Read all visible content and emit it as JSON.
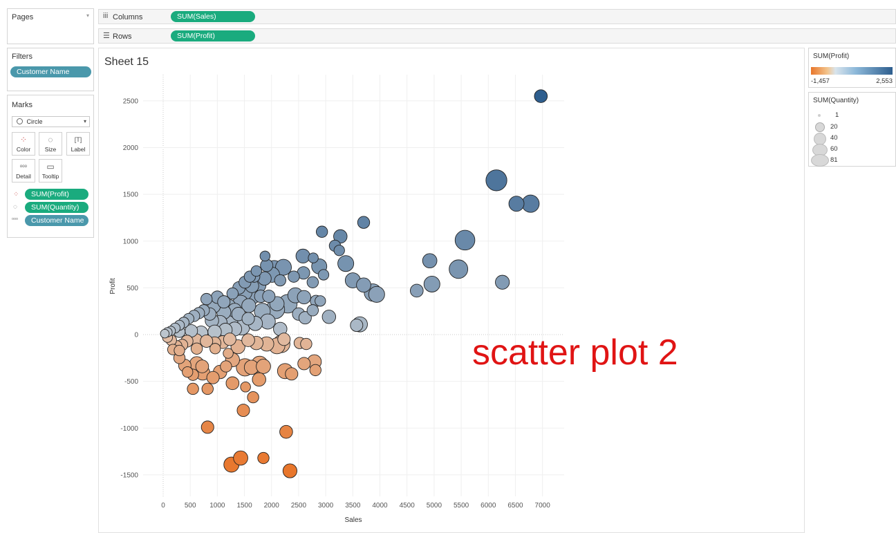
{
  "pages": {
    "title": "Pages"
  },
  "shelves": {
    "columns_label": "Columns",
    "columns_pill": "SUM(Sales)",
    "rows_label": "Rows",
    "rows_pill": "SUM(Profit)"
  },
  "filters": {
    "title": "Filters",
    "pill": "Customer Name"
  },
  "marks": {
    "title": "Marks",
    "type": "Circle",
    "buttons": {
      "color": "Color",
      "size": "Size",
      "label": "Label",
      "detail": "Detail",
      "tooltip": "Tooltip"
    },
    "fields": [
      "SUM(Profit)",
      "SUM(Quantity)",
      "Customer Name"
    ]
  },
  "sheet": {
    "title": "Sheet 15"
  },
  "annotation": "scatter plot 2",
  "legend_color": {
    "title": "SUM(Profit)",
    "min_label": "-1,457",
    "max_label": "2,553",
    "neg_color": "#e8762b",
    "pos_color": "#2e5e8e"
  },
  "legend_size": {
    "title": "SUM(Quantity)",
    "items": [
      "1",
      "20",
      "40",
      "60",
      "81"
    ]
  },
  "chart_data": {
    "type": "scatter",
    "xlabel": "Sales",
    "ylabel": "Profit",
    "xlim": [
      -370,
      7400
    ],
    "ylim": [
      -1730,
      2780
    ],
    "xticks": [
      "0",
      "500",
      "1000",
      "1500",
      "2000",
      "2500",
      "3000",
      "3500",
      "4000",
      "4500",
      "5000",
      "5500",
      "6000",
      "6500",
      "7000"
    ],
    "yticks": [
      "-1500",
      "-1000",
      "-500",
      "0",
      "500",
      "1000",
      "1500",
      "2000",
      "2500"
    ],
    "xtick_values": [
      0,
      500,
      1000,
      1500,
      2000,
      2500,
      3000,
      3500,
      4000,
      4500,
      5000,
      5500,
      6000,
      6500,
      7000
    ],
    "ytick_values": [
      -1500,
      -1000,
      -500,
      0,
      500,
      1000,
      1500,
      2000,
      2500
    ],
    "color_field": "SUM(Profit)",
    "size_field": "SUM(Quantity)",
    "points": [
      {
        "x": 6970,
        "y": 2550,
        "q": 22
      },
      {
        "x": 6150,
        "y": 1650,
        "q": 81
      },
      {
        "x": 6520,
        "y": 1400,
        "q": 35
      },
      {
        "x": 6780,
        "y": 1400,
        "q": 50
      },
      {
        "x": 5570,
        "y": 1010,
        "q": 70
      },
      {
        "x": 6260,
        "y": 560,
        "q": 28
      },
      {
        "x": 5450,
        "y": 700,
        "q": 60
      },
      {
        "x": 4920,
        "y": 790,
        "q": 30
      },
      {
        "x": 4960,
        "y": 540,
        "q": 40
      },
      {
        "x": 4680,
        "y": 470,
        "q": 22
      },
      {
        "x": 3870,
        "y": 450,
        "q": 50
      },
      {
        "x": 3940,
        "y": 430,
        "q": 40
      },
      {
        "x": 3700,
        "y": 530,
        "q": 30
      },
      {
        "x": 3500,
        "y": 580,
        "q": 35
      },
      {
        "x": 3370,
        "y": 760,
        "q": 40
      },
      {
        "x": 3270,
        "y": 1050,
        "q": 25
      },
      {
        "x": 3700,
        "y": 1200,
        "q": 18
      },
      {
        "x": 2930,
        "y": 1100,
        "q": 15
      },
      {
        "x": 3170,
        "y": 950,
        "q": 15
      },
      {
        "x": 3250,
        "y": 900,
        "q": 12
      },
      {
        "x": 2880,
        "y": 730,
        "q": 35
      },
      {
        "x": 2960,
        "y": 640,
        "q": 12
      },
      {
        "x": 2580,
        "y": 840,
        "q": 28
      },
      {
        "x": 2770,
        "y": 820,
        "q": 10
      },
      {
        "x": 2410,
        "y": 620,
        "q": 15
      },
      {
        "x": 2590,
        "y": 660,
        "q": 20
      },
      {
        "x": 2760,
        "y": 560,
        "q": 15
      },
      {
        "x": 3060,
        "y": 190,
        "q": 25
      },
      {
        "x": 3630,
        "y": 110,
        "q": 35
      },
      {
        "x": 3570,
        "y": 100,
        "q": 20
      },
      {
        "x": 2440,
        "y": 420,
        "q": 35
      },
      {
        "x": 2600,
        "y": 400,
        "q": 25
      },
      {
        "x": 2820,
        "y": 360,
        "q": 15
      },
      {
        "x": 2300,
        "y": 330,
        "q": 60
      },
      {
        "x": 2070,
        "y": 270,
        "q": 60
      },
      {
        "x": 2500,
        "y": 220,
        "q": 20
      },
      {
        "x": 2620,
        "y": 180,
        "q": 20
      },
      {
        "x": 2760,
        "y": 260,
        "q": 15
      },
      {
        "x": 2900,
        "y": 360,
        "q": 12
      },
      {
        "x": 1910,
        "y": 740,
        "q": 20
      },
      {
        "x": 2050,
        "y": 700,
        "q": 50
      },
      {
        "x": 2220,
        "y": 720,
        "q": 40
      },
      {
        "x": 1870,
        "y": 600,
        "q": 25
      },
      {
        "x": 1680,
        "y": 620,
        "q": 15
      },
      {
        "x": 2160,
        "y": 580,
        "q": 15
      },
      {
        "x": 2010,
        "y": 640,
        "q": 35
      },
      {
        "x": 1750,
        "y": 530,
        "q": 40
      },
      {
        "x": 1640,
        "y": 520,
        "q": 25
      },
      {
        "x": 1500,
        "y": 450,
        "q": 35
      },
      {
        "x": 1640,
        "y": 410,
        "q": 40
      },
      {
        "x": 1800,
        "y": 410,
        "q": 20
      },
      {
        "x": 1950,
        "y": 410,
        "q": 20
      },
      {
        "x": 2100,
        "y": 330,
        "q": 30
      },
      {
        "x": 1830,
        "y": 250,
        "q": 40
      },
      {
        "x": 1580,
        "y": 310,
        "q": 28
      },
      {
        "x": 1430,
        "y": 340,
        "q": 35
      },
      {
        "x": 1320,
        "y": 260,
        "q": 28
      },
      {
        "x": 1210,
        "y": 300,
        "q": 30
      },
      {
        "x": 1120,
        "y": 240,
        "q": 28
      },
      {
        "x": 940,
        "y": 300,
        "q": 20
      },
      {
        "x": 860,
        "y": 220,
        "q": 20
      },
      {
        "x": 750,
        "y": 260,
        "q": 15
      },
      {
        "x": 660,
        "y": 230,
        "q": 15
      },
      {
        "x": 570,
        "y": 200,
        "q": 15
      },
      {
        "x": 470,
        "y": 170,
        "q": 12
      },
      {
        "x": 380,
        "y": 130,
        "q": 12
      },
      {
        "x": 300,
        "y": 100,
        "q": 10
      },
      {
        "x": 220,
        "y": 70,
        "q": 10
      },
      {
        "x": 140,
        "y": 40,
        "q": 8
      },
      {
        "x": 80,
        "y": 25,
        "q": 8
      },
      {
        "x": 30,
        "y": 10,
        "q": 6
      },
      {
        "x": 1000,
        "y": 400,
        "q": 20
      },
      {
        "x": 1280,
        "y": 440,
        "q": 15
      },
      {
        "x": 1400,
        "y": 500,
        "q": 20
      },
      {
        "x": 1510,
        "y": 560,
        "q": 18
      },
      {
        "x": 1600,
        "y": 620,
        "q": 15
      },
      {
        "x": 1880,
        "y": 840,
        "q": 10
      },
      {
        "x": 1720,
        "y": 680,
        "q": 12
      },
      {
        "x": 1120,
        "y": 350,
        "q": 20
      },
      {
        "x": 800,
        "y": 380,
        "q": 15
      },
      {
        "x": 900,
        "y": 150,
        "q": 25
      },
      {
        "x": 1050,
        "y": 130,
        "q": 28
      },
      {
        "x": 1240,
        "y": 120,
        "q": 35
      },
      {
        "x": 1450,
        "y": 80,
        "q": 40
      },
      {
        "x": 1700,
        "y": 120,
        "q": 30
      },
      {
        "x": 1930,
        "y": 140,
        "q": 35
      },
      {
        "x": 2160,
        "y": 60,
        "q": 25
      },
      {
        "x": 1390,
        "y": 220,
        "q": 25
      },
      {
        "x": 1150,
        "y": 50,
        "q": 25
      },
      {
        "x": 950,
        "y": 30,
        "q": 25
      },
      {
        "x": 700,
        "y": 20,
        "q": 25
      },
      {
        "x": 520,
        "y": 40,
        "q": 20
      },
      {
        "x": 300,
        "y": 30,
        "q": 15
      },
      {
        "x": 1570,
        "y": 170,
        "q": 20
      },
      {
        "x": 1320,
        "y": 60,
        "q": 28
      },
      {
        "x": 2230,
        "y": -50,
        "q": 20
      },
      {
        "x": 2100,
        "y": -120,
        "q": 40
      },
      {
        "x": 2180,
        "y": -100,
        "q": 50
      },
      {
        "x": 1910,
        "y": -100,
        "q": 30
      },
      {
        "x": 1720,
        "y": -90,
        "q": 25
      },
      {
        "x": 1570,
        "y": -60,
        "q": 22
      },
      {
        "x": 1380,
        "y": -130,
        "q": 28
      },
      {
        "x": 1230,
        "y": -50,
        "q": 20
      },
      {
        "x": 1100,
        "y": -80,
        "q": 22
      },
      {
        "x": 950,
        "y": -90,
        "q": 20
      },
      {
        "x": 800,
        "y": -70,
        "q": 20
      },
      {
        "x": 610,
        "y": -60,
        "q": 22
      },
      {
        "x": 440,
        "y": -70,
        "q": 18
      },
      {
        "x": 350,
        "y": -110,
        "q": 15
      },
      {
        "x": 250,
        "y": -120,
        "q": 12
      },
      {
        "x": 150,
        "y": -60,
        "q": 12
      },
      {
        "x": 80,
        "y": -30,
        "q": 10
      },
      {
        "x": 2520,
        "y": -90,
        "q": 15
      },
      {
        "x": 2640,
        "y": -100,
        "q": 15
      },
      {
        "x": 2250,
        "y": -390,
        "q": 35
      },
      {
        "x": 2370,
        "y": -420,
        "q": 20
      },
      {
        "x": 2600,
        "y": -310,
        "q": 20
      },
      {
        "x": 2790,
        "y": -290,
        "q": 28
      },
      {
        "x": 2810,
        "y": -380,
        "q": 15
      },
      {
        "x": 1510,
        "y": -350,
        "q": 50
      },
      {
        "x": 1630,
        "y": -350,
        "q": 30
      },
      {
        "x": 1780,
        "y": -320,
        "q": 45
      },
      {
        "x": 1850,
        "y": -340,
        "q": 30
      },
      {
        "x": 1770,
        "y": -480,
        "q": 25
      },
      {
        "x": 1280,
        "y": -270,
        "q": 28
      },
      {
        "x": 1160,
        "y": -340,
        "q": 15
      },
      {
        "x": 1050,
        "y": -400,
        "q": 25
      },
      {
        "x": 920,
        "y": -460,
        "q": 20
      },
      {
        "x": 720,
        "y": -340,
        "q": 22
      },
      {
        "x": 620,
        "y": -310,
        "q": 28
      },
      {
        "x": 730,
        "y": -410,
        "q": 30
      },
      {
        "x": 550,
        "y": -430,
        "q": 15
      },
      {
        "x": 400,
        "y": -330,
        "q": 20
      },
      {
        "x": 450,
        "y": -400,
        "q": 12
      },
      {
        "x": 300,
        "y": -250,
        "q": 15
      },
      {
        "x": 550,
        "y": -580,
        "q": 15
      },
      {
        "x": 820,
        "y": -580,
        "q": 15
      },
      {
        "x": 1280,
        "y": -520,
        "q": 22
      },
      {
        "x": 1520,
        "y": -560,
        "q": 10
      },
      {
        "x": 1660,
        "y": -670,
        "q": 15
      },
      {
        "x": 1480,
        "y": -810,
        "q": 20
      },
      {
        "x": 820,
        "y": -990,
        "q": 20
      },
      {
        "x": 2270,
        "y": -1040,
        "q": 22
      },
      {
        "x": 1260,
        "y": -1390,
        "q": 35
      },
      {
        "x": 1430,
        "y": -1320,
        "q": 30
      },
      {
        "x": 1850,
        "y": -1320,
        "q": 15
      },
      {
        "x": 2340,
        "y": -1457,
        "q": 28
      },
      {
        "x": 180,
        "y": -160,
        "q": 12
      },
      {
        "x": 300,
        "y": -170,
        "q": 12
      },
      {
        "x": 620,
        "y": -150,
        "q": 15
      },
      {
        "x": 960,
        "y": -150,
        "q": 12
      },
      {
        "x": 1200,
        "y": -200,
        "q": 10
      }
    ]
  }
}
